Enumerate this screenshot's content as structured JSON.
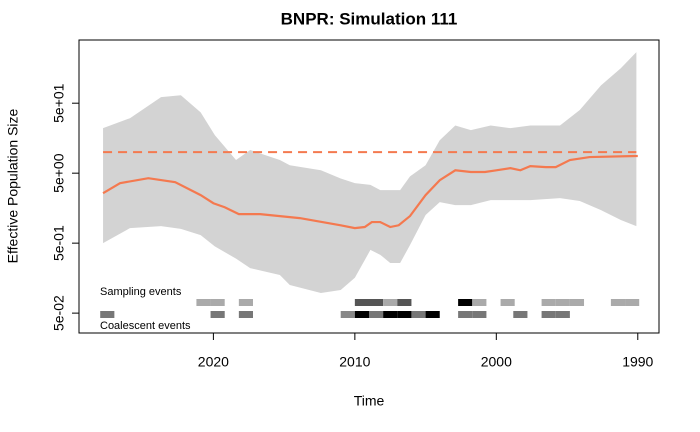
{
  "chart_data": {
    "type": "bnpr",
    "title": "BNPR: Simulation 111",
    "xlabel": "Time",
    "ylabel": "Effective Population Size",
    "xlim": [
      2029.5,
      1988.5
    ],
    "xticks": [
      2020,
      2010,
      2000,
      1990
    ],
    "ylim": [
      0.026,
      400
    ],
    "ylog": true,
    "yticks": [
      {
        "value": 0.05,
        "label": "5e-02"
      },
      {
        "value": 0.5,
        "label": "5e-01"
      },
      {
        "value": 5,
        "label": "5e+00"
      },
      {
        "value": 50,
        "label": "5e+01"
      }
    ],
    "band": {
      "color": "#d3d3d3",
      "x": [
        2027.8,
        2025.9,
        2023.7,
        2022.3,
        2020.9,
        2019.9,
        2018.4,
        2017.4,
        2015.3,
        2014.6,
        2012.4,
        2011.0,
        2010,
        2008.9,
        2008.2,
        2007.5,
        2006.8,
        2006.1,
        2005.0,
        2004.0,
        2002.9,
        2001.8,
        2000.4,
        1999.0,
        1997.6,
        1995.5,
        1994.1,
        1992.6,
        1991.2,
        1990.1
      ],
      "upper": [
        22,
        30.5,
        61,
        65,
        37,
        17.5,
        7.7,
        10.7,
        7.7,
        6.5,
        5.5,
        4.2,
        3.6,
        3.4,
        2.86,
        2.86,
        2.86,
        4.5,
        6.5,
        14.8,
        24,
        20.6,
        24,
        22,
        24,
        24,
        40,
        90,
        158,
        268
      ],
      "lower": [
        0.5,
        0.82,
        0.875,
        0.8,
        0.65,
        0.45,
        0.3,
        0.22,
        0.175,
        0.126,
        0.097,
        0.107,
        0.16,
        0.4,
        0.34,
        0.26,
        0.26,
        0.47,
        1.26,
        1.93,
        1.75,
        1.75,
        2.06,
        2.06,
        2.06,
        2.2,
        2.0,
        1.48,
        1.07,
        0.875
      ]
    },
    "median": {
      "color": "#f4794f",
      "x": [
        2027.8,
        2026.6,
        2024.6,
        2022.7,
        2020.9,
        2020,
        2019.2,
        2018.2,
        2016.7,
        2013.9,
        2011.0,
        2010,
        2009.3,
        2008.8,
        2008.2,
        2007.5,
        2006.9,
        2006.1,
        2005.0,
        2004.0,
        2002.9,
        2001.8,
        2000.8,
        2000,
        1999.0,
        1998.3,
        1997.6,
        1996.5,
        1995.8,
        1994.8,
        1993.4,
        1990
      ],
      "values": [
        2.59,
        3.6,
        4.24,
        3.72,
        2.43,
        1.86,
        1.63,
        1.3,
        1.3,
        1.14,
        0.9,
        0.82,
        0.85,
        1.0,
        1.0,
        0.85,
        0.9,
        1.22,
        2.43,
        3.97,
        5.5,
        5.2,
        5.2,
        5.5,
        5.9,
        5.5,
        6.3,
        6.1,
        6.1,
        7.7,
        8.5,
        8.8
      ]
    },
    "reference": {
      "value": 10,
      "color": "#f4794f",
      "dashed": true
    },
    "sampling_events": {
      "label": "Sampling events",
      "x": [
        2020.7,
        2019.7,
        2017.7,
        2009.5,
        2008.5,
        2007.5,
        2006.5,
        2002.2,
        2001.2,
        1999.2,
        1996.3,
        1995.3,
        1994.3,
        1991.4,
        1990.4
      ],
      "colors": [
        "#aaaaaa",
        "#aaaaaa",
        "#aaaaaa",
        "#555555",
        "#555555",
        "#aaaaaa",
        "#555555",
        "#000000",
        "#aaaaaa",
        "#aaaaaa",
        "#aaaaaa",
        "#aaaaaa",
        "#aaaaaa",
        "#aaaaaa",
        "#aaaaaa"
      ]
    },
    "coalescent_events": {
      "label": "Coalescent events",
      "x": [
        2027.5,
        2019.7,
        2017.7,
        2010.5,
        2009.5,
        2008.5,
        2007.5,
        2006.5,
        2005.5,
        2004.5,
        2002.2,
        2001.2,
        1998.3,
        1996.3,
        1995.3
      ],
      "colors": [
        "#777777",
        "#777777",
        "#777777",
        "#888888",
        "#000000",
        "#777777",
        "#000000",
        "#000000",
        "#777777",
        "#000000",
        "#777777",
        "#777777",
        "#777777",
        "#777777",
        "#777777"
      ]
    }
  }
}
